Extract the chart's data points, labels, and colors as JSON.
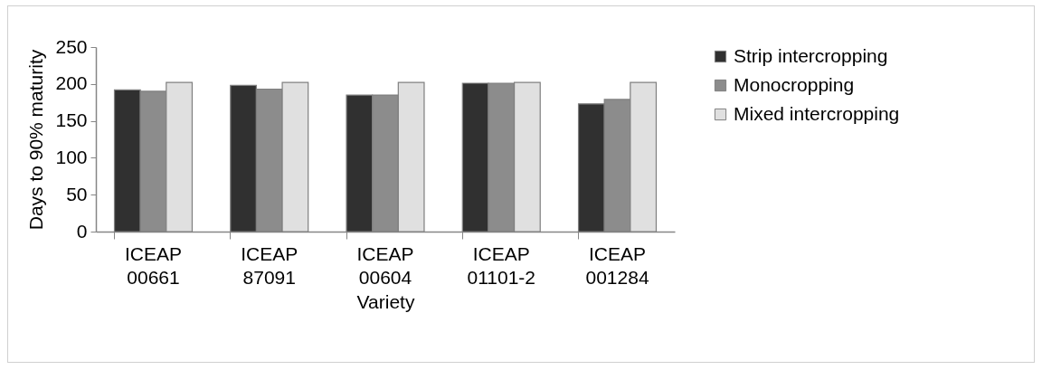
{
  "chart_data": {
    "type": "bar",
    "xlabel": "Variety",
    "ylabel": "Days to 90% maturity",
    "categories": [
      "ICEAP 00661",
      "ICEAP 87091",
      "ICEAP 00604",
      "ICEAP 01101-2",
      "ICEAP 001284"
    ],
    "series": [
      {
        "name": "Strip intercropping",
        "color": "#303030",
        "values": [
          192,
          198,
          185,
          201,
          173
        ]
      },
      {
        "name": "Monocropping",
        "color": "#8c8c8c",
        "values": [
          190,
          193,
          185,
          201,
          179
        ]
      },
      {
        "name": "Mixed intercropping",
        "color": "#e0e0e0",
        "values": [
          202,
          202,
          202,
          202,
          202
        ]
      }
    ],
    "ylim": [
      0,
      250
    ],
    "yticks": [
      0,
      50,
      100,
      150,
      200,
      250
    ],
    "grid": false,
    "legend": "right"
  }
}
